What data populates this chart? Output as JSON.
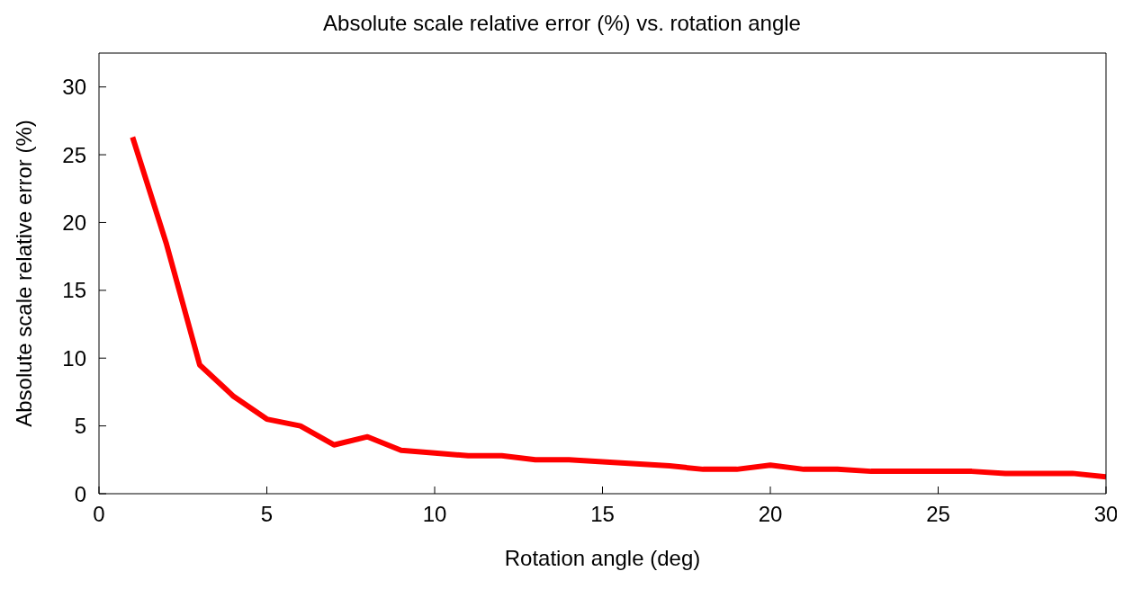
{
  "chart_data": {
    "type": "line",
    "title": "Absolute scale relative error (%) vs. rotation angle",
    "xlabel": "Rotation angle (deg)",
    "ylabel": "Absolute scale relative error (%)",
    "x": [
      1,
      2,
      3,
      4,
      5,
      6,
      7,
      8,
      9,
      10,
      11,
      12,
      13,
      14,
      15,
      16,
      17,
      18,
      19,
      20,
      21,
      22,
      23,
      24,
      25,
      26,
      27,
      28,
      29,
      30
    ],
    "series": [
      {
        "color": "#ff0000",
        "values": [
          26.3,
          18.5,
          9.5,
          7.2,
          5.5,
          5.0,
          3.6,
          4.2,
          3.2,
          3.0,
          2.8,
          2.8,
          2.5,
          2.5,
          2.35,
          2.2,
          2.05,
          1.8,
          1.8,
          2.1,
          1.8,
          1.8,
          1.65,
          1.65,
          1.65,
          1.65,
          1.5,
          1.5,
          1.5,
          1.25
        ]
      }
    ],
    "xlim": [
      0,
      30
    ],
    "xticks": [
      0,
      5,
      10,
      15,
      20,
      25,
      30
    ],
    "ylim": [
      0,
      32.5
    ],
    "yticks": [
      0,
      5,
      10,
      15,
      20,
      25,
      30
    ],
    "grid": false,
    "marker": "none",
    "line_style": "solid"
  }
}
